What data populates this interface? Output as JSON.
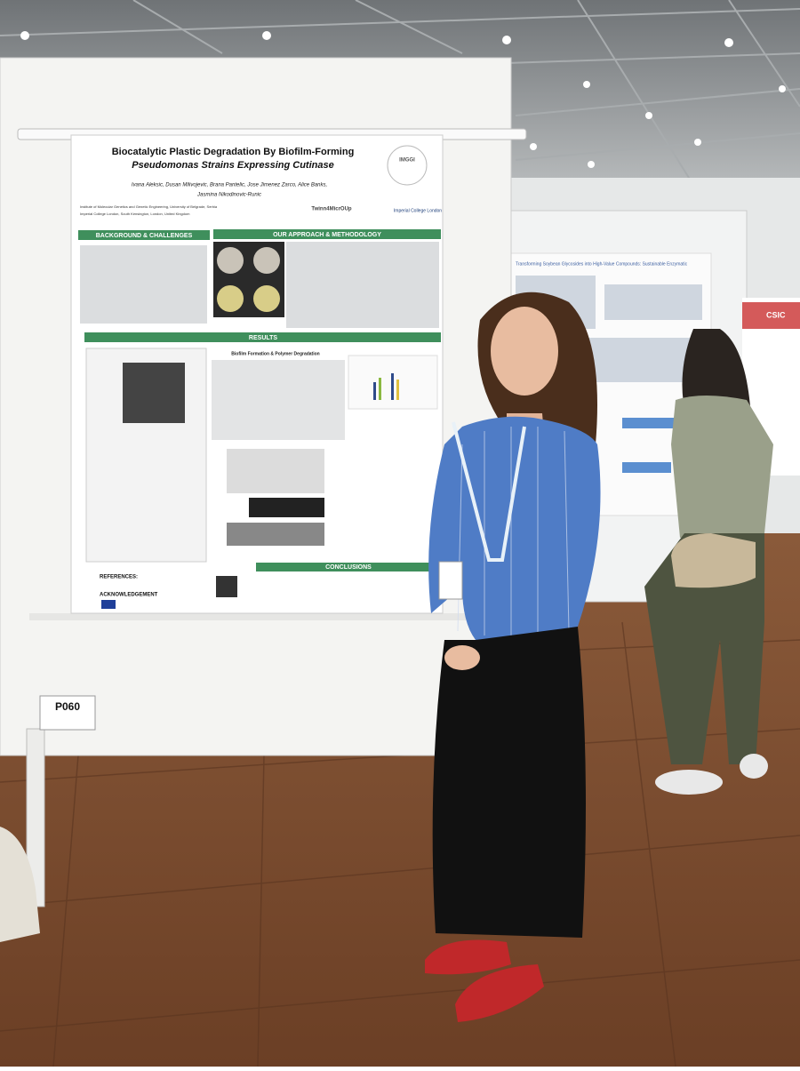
{
  "poster": {
    "title_line1": "Biocatalytic Plastic Degradation By Biofilm-Forming",
    "title_line2": "Pseudomonas Strains Expressing Cutinase",
    "authors_line1": "Ivana Aleksic, Dusan Milivojevic, Brana Pantelic, Jose Jimenez Zarco, Alice Banks,",
    "authors_line2": "Jasmina Nikodinovic-Runic",
    "affiliation1": "Institute of Molecular Genetics and Genetic Engineering, University of Belgrade, Serbia",
    "affiliation2": "Imperial College London, South Kensington, London, United Kingdom",
    "logos": [
      "IMGGI",
      "Twinn4MicrOUp",
      "Imperial College London"
    ],
    "sections": [
      "BACKGROUND & CHALLENGES",
      "OUR APPROACH & METHODOLOGY",
      "RESULTS",
      "CONCLUSIONS"
    ],
    "subheading": "Biofilm Formation & Polymer Degradation",
    "references": "REFERENCES:",
    "acknowledgement": "ACKNOWLEDGEMENT"
  },
  "board_label": "P060",
  "right_poster": {
    "title": "Transforming Soybean Glycosides into High-Value Compounds: Sustainable Enzymatic",
    "logo": "CSIC"
  }
}
